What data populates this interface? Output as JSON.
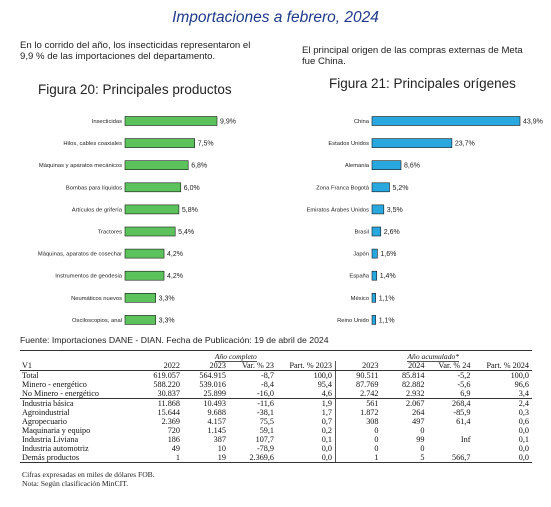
{
  "page": {
    "title": "Importaciones a febrero, 2024",
    "left_text": "En lo corrido del año, los insecticidas representaron el 9,9 % de las importaciones del departamento.",
    "right_text": "El principal origen de las compras externas de Meta fue China."
  },
  "charts": {
    "products": {
      "title": "Figura 20: Principales productos",
      "color": "#5cc25c",
      "chart_data": {
        "type": "bar",
        "orientation": "horizontal",
        "categories": [
          "Insecticidas",
          "Hilos, cables coaxiales",
          "Máquinas y aparatos mecánicos",
          "Bombas para líquidos",
          "Artículos de grifería",
          "Tractores",
          "Máquinas, aparatos de cosechar",
          "Instrumentos de geodesia",
          "Neumáticos nuevos",
          "Osciloscopios, anal"
        ],
        "values": [
          9.9,
          7.5,
          6.8,
          6.0,
          5.8,
          5.4,
          4.2,
          4.2,
          3.3,
          3.3
        ],
        "labels": [
          "9,9%",
          "7,5%",
          "6,8%",
          "6,0%",
          "5,8%",
          "5,4%",
          "4,2%",
          "4,2%",
          "3,3%",
          "3,3%"
        ]
      }
    },
    "origins": {
      "title": "Figura 21: Principales orígenes",
      "color": "#29a8e0",
      "chart_data": {
        "type": "bar",
        "orientation": "horizontal",
        "categories": [
          "China",
          "Estados Unidos",
          "Alemania",
          "Zona Franca Bogotá",
          "Emiratos Árabes Unidos",
          "Brasil",
          "Japón",
          "España",
          "México",
          "Reino Unido"
        ],
        "values": [
          43.9,
          23.7,
          8.6,
          5.2,
          3.5,
          2.6,
          1.6,
          1.4,
          1.1,
          1.1
        ],
        "labels": [
          "43,9%",
          "23,7%",
          "8,6%",
          "5,2%",
          "3,5%",
          "2,6%",
          "1,6%",
          "1,4%",
          "1,1%",
          "1,1%"
        ]
      }
    }
  },
  "source": "Fuente: Importaciones DANE - DIAN. Fecha de Publicación: 19 de abril de 2024",
  "table": {
    "group_left": "Año completo",
    "group_right": "Año acumulado*",
    "headers": [
      "V1",
      "2022",
      "2023",
      "Var. % 23",
      "Part. % 2023",
      "2023",
      "2024",
      "Var. % 24",
      "Part. % 2024"
    ],
    "rows": [
      [
        "Total",
        "619.057",
        "564.915",
        "-8,7",
        "100,0",
        "90.511",
        "85.814",
        "-5,2",
        "100,0"
      ],
      [
        "Minero - energético",
        "588.220",
        "539.016",
        "-8,4",
        "95,4",
        "87.769",
        "82.882",
        "-5,6",
        "96,6"
      ],
      [
        "No Minero - energético",
        "30.837",
        "25.899",
        "-16,0",
        "4,6",
        "2.742",
        "2.932",
        "6,9",
        "3,4"
      ],
      [
        "Industria básica",
        "11.868",
        "10.493",
        "-11,6",
        "1,9",
        "561",
        "2.067",
        "268,4",
        "2,4"
      ],
      [
        "Agroindustrial",
        "15.644",
        "9.688",
        "-38,1",
        "1,7",
        "1.872",
        "264",
        "-85,9",
        "0,3"
      ],
      [
        "Agropecuario",
        "2.369",
        "4.157",
        "75,5",
        "0,7",
        "308",
        "497",
        "61,4",
        "0,6"
      ],
      [
        "Maquinaria y equipo",
        "720",
        "1.145",
        "59,1",
        "0,2",
        "0",
        "0",
        "",
        "0,0"
      ],
      [
        "Industria Liviana",
        "186",
        "387",
        "107,7",
        "0,1",
        "0",
        "99",
        "Inf",
        "0,1"
      ],
      [
        "Industria automotriz",
        "49",
        "10",
        "-78,9",
        "0,0",
        "0",
        "0",
        "",
        "0,0"
      ],
      [
        "Demás productos",
        "1",
        "19",
        "2.369,6",
        "0,0",
        "1",
        "5",
        "566,7",
        "0,0"
      ]
    ],
    "notes": [
      "Cifras expresadas en miles de dólares FOB.",
      "Nota: Según clasificación MinCIT."
    ]
  }
}
